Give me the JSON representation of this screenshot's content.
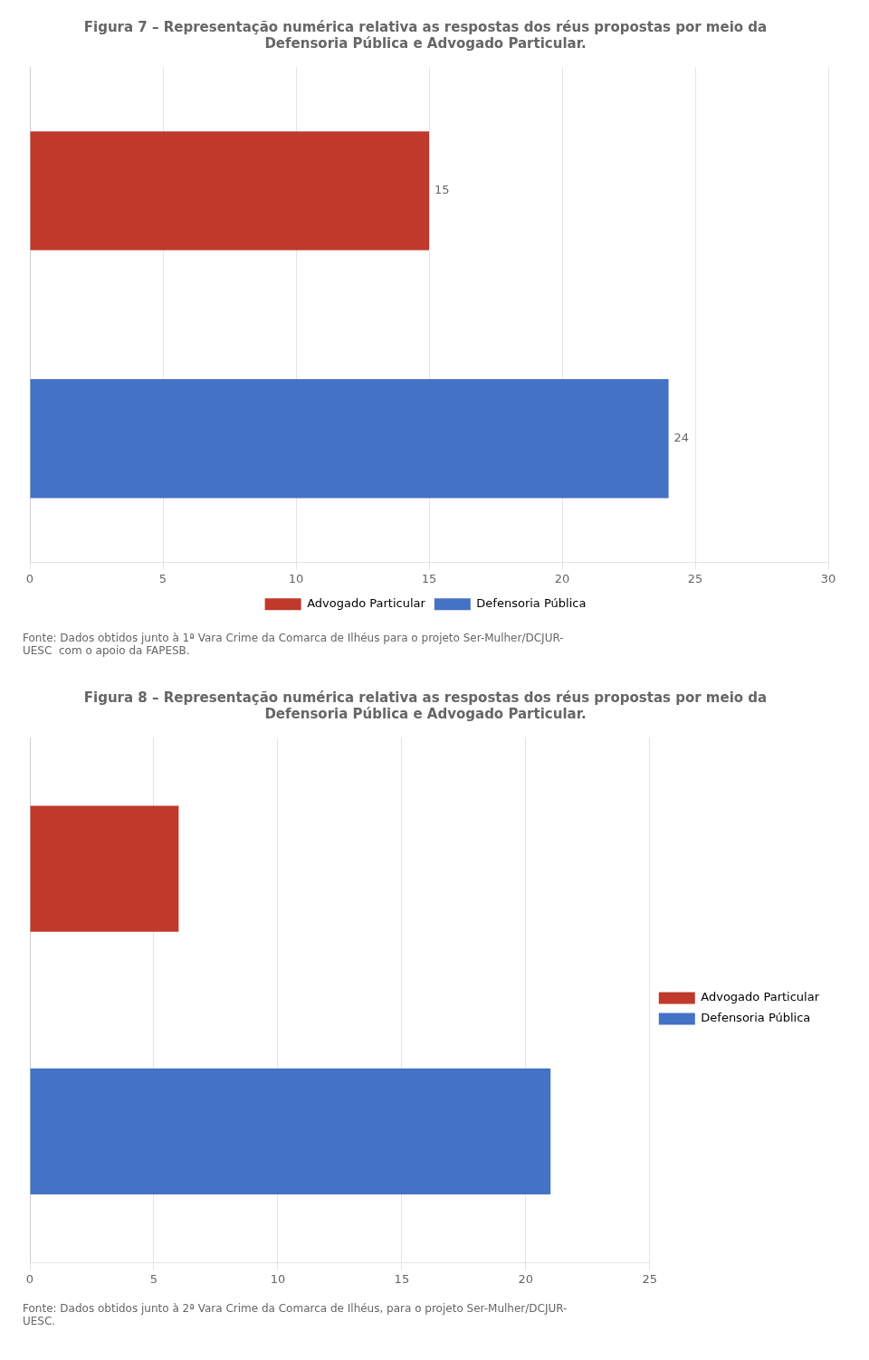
{
  "chart_data": [
    {
      "type": "bar",
      "orientation": "horizontal",
      "title": "Figura 7 – Representação numérica relativa as respostas dos réus propostas por meio da\nDefensoria Pública e Advogado Particular.",
      "categories": [
        "Advogado Particular",
        "Defensoria Pública"
      ],
      "values": [
        15,
        24
      ],
      "colors": [
        "#c0392b",
        "#4472c4"
      ],
      "xlim": [
        0,
        30
      ],
      "xticks": [
        0,
        5,
        10,
        15,
        20,
        25,
        30
      ],
      "grid": true,
      "tick_labels": "x",
      "legend": "bottom",
      "data_labels": true,
      "annotations": [
        "Fonte: Dados obtidos junto à 1ª Vara Crime da Comarca de Ilhéus para o projeto Ser-Mulher/DCJUR-\nUESC  com o apoio da FAPESB."
      ]
    },
    {
      "type": "bar",
      "orientation": "horizontal",
      "title": "Figura 8 – Representação numérica relativa as respostas dos réus propostas por meio da\nDefensoria Pública e Advogado Particular.",
      "categories": [
        "Advogado Particular",
        "Defensoria Pública"
      ],
      "values": [
        6,
        21
      ],
      "colors": [
        "#c0392b",
        "#4472c4"
      ],
      "xlim": [
        0,
        25
      ],
      "xticks": [
        0,
        5,
        10,
        15,
        20,
        25
      ],
      "grid": true,
      "tick_labels": "x",
      "legend": "right",
      "data_labels": false,
      "annotations": [
        "Fonte: Dados obtidos junto à 2ª Vara Crime da Comarca de Ilhéus, para o projeto Ser-Mulher/DCJUR-\nUESC."
      ]
    }
  ]
}
